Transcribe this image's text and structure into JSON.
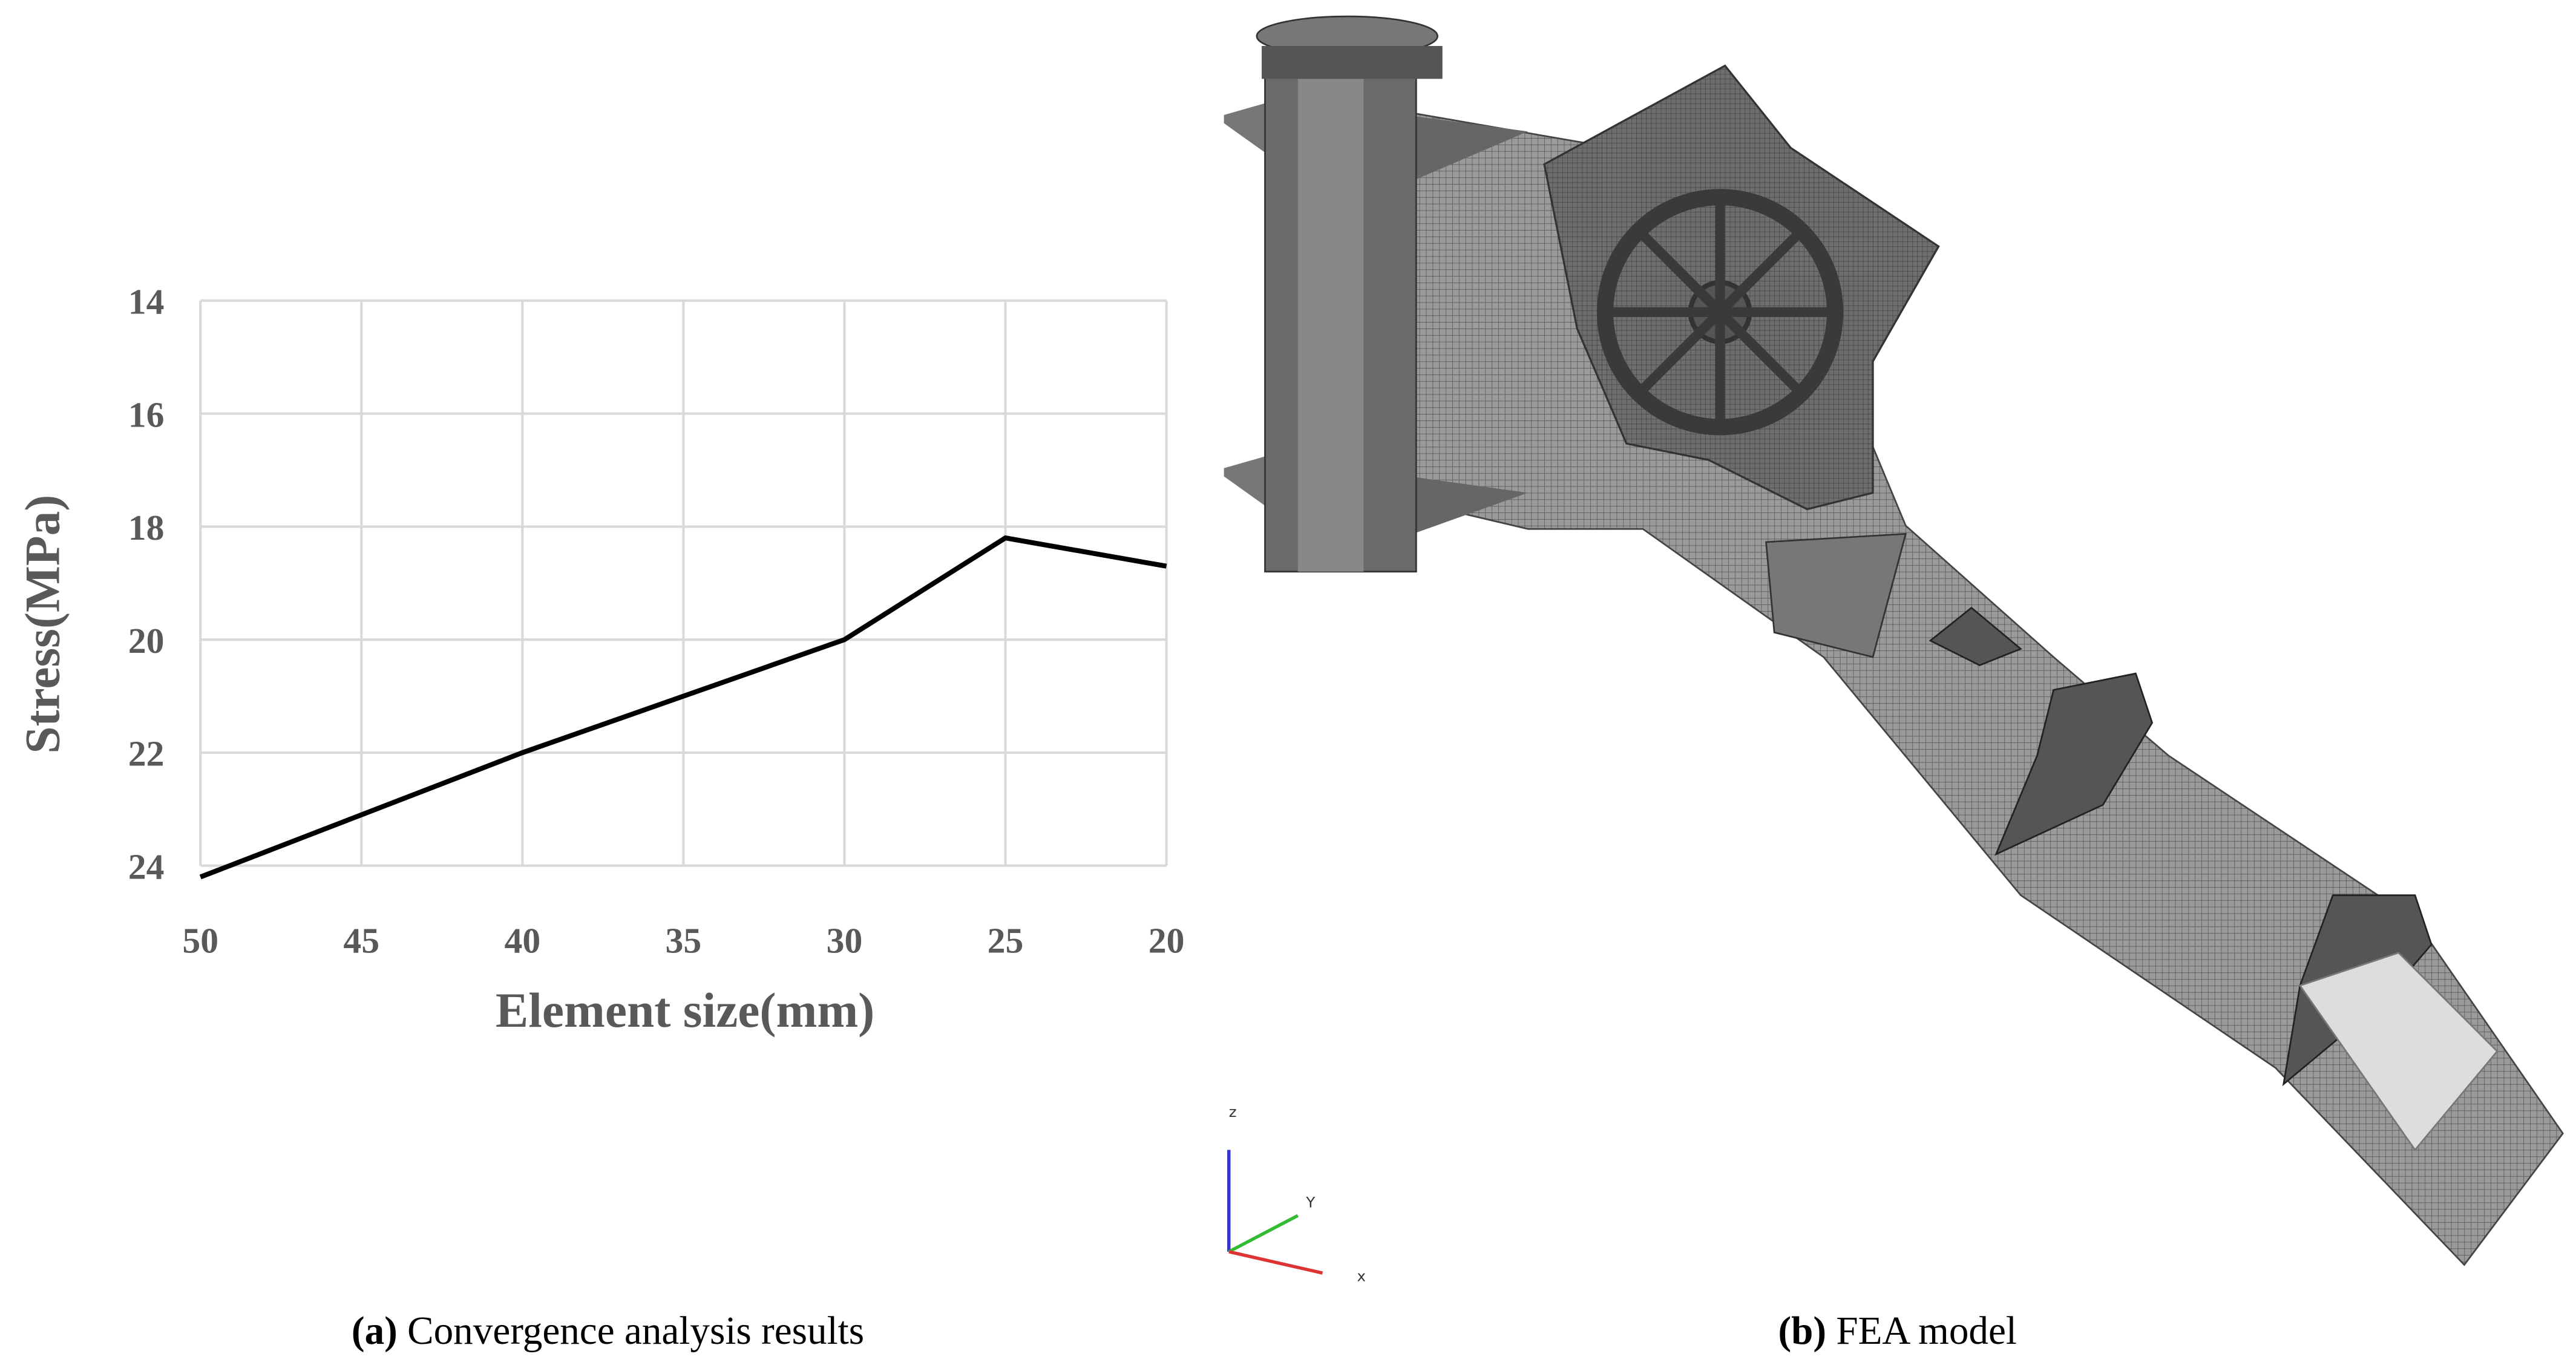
{
  "chart_data": {
    "type": "line",
    "x_label": "Element size(mm)",
    "y_label": "Stress(MPa)",
    "x": [
      50,
      40,
      30,
      25,
      20
    ],
    "values": [
      24.2,
      22.0,
      20.0,
      18.2,
      18.7
    ],
    "color": "#000000",
    "xlim": [
      50,
      20
    ],
    "xticks": [
      50,
      45,
      40,
      35,
      30,
      25,
      20
    ],
    "ylim": [
      24,
      14
    ],
    "yticks": [
      14,
      16,
      18,
      20,
      22,
      24
    ],
    "grid": true
  },
  "captions": [
    {
      "label": "(a)",
      "text": "Convergence analysis results"
    },
    {
      "label": "(b)",
      "text": "FEA model"
    }
  ],
  "model": {
    "axis_labels": [
      "z",
      "Y",
      "x"
    ]
  }
}
